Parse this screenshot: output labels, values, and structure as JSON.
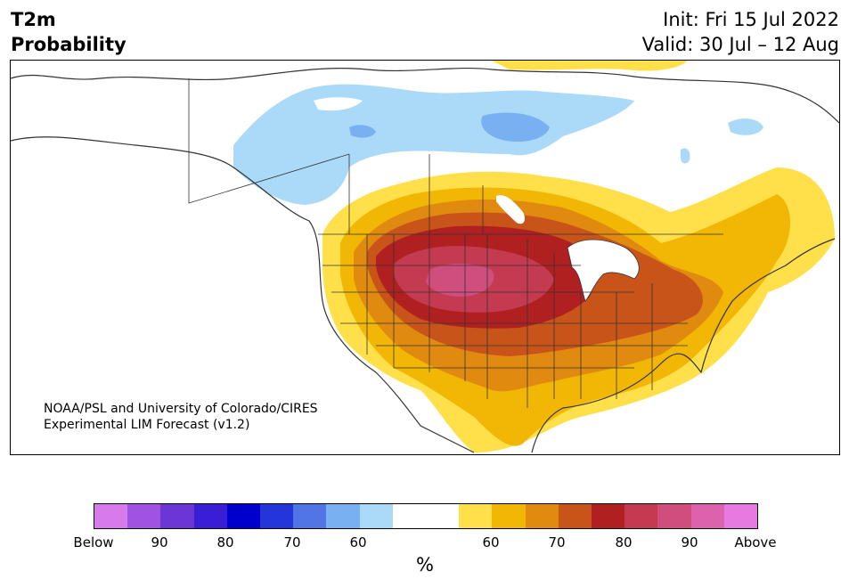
{
  "header": {
    "title_line1": "T2m",
    "title_line2": "Probability",
    "init": "Init: Fri 15 Jul 2022",
    "valid": "Valid: 30 Jul – 12 Aug"
  },
  "credit": {
    "line1": "NOAA/PSL and University of Colorado/CIRES",
    "line2": "Experimental LIM Forecast (v1.2)"
  },
  "colorbar": {
    "colors": [
      "#d77aeb",
      "#a052e0",
      "#6c36d6",
      "#3a1ed6",
      "#0000cc",
      "#2436d9",
      "#5275e6",
      "#78b0f2",
      "#aadaf8",
      "#ffffff",
      "#ffffff",
      "#ffe04a",
      "#f2b705",
      "#e08a10",
      "#c9541a",
      "#b02020",
      "#c43a50",
      "#d04e7e",
      "#dd62ad",
      "#e77ae0"
    ],
    "tick_labels": [
      "Below",
      "90",
      "80",
      "70",
      "60",
      "60",
      "70",
      "80",
      "90",
      "Above"
    ],
    "unit": "%"
  },
  "map_colors": {
    "light_blue": "#aadaf8",
    "mid_blue": "#78b0f2",
    "yellow": "#ffe04a",
    "gold": "#f2b705",
    "orange": "#e08a10",
    "dark_orange": "#c9541a",
    "red": "#b02020",
    "crimson": "#c43a50",
    "pink": "#d04e7e",
    "outline": "#333333"
  }
}
